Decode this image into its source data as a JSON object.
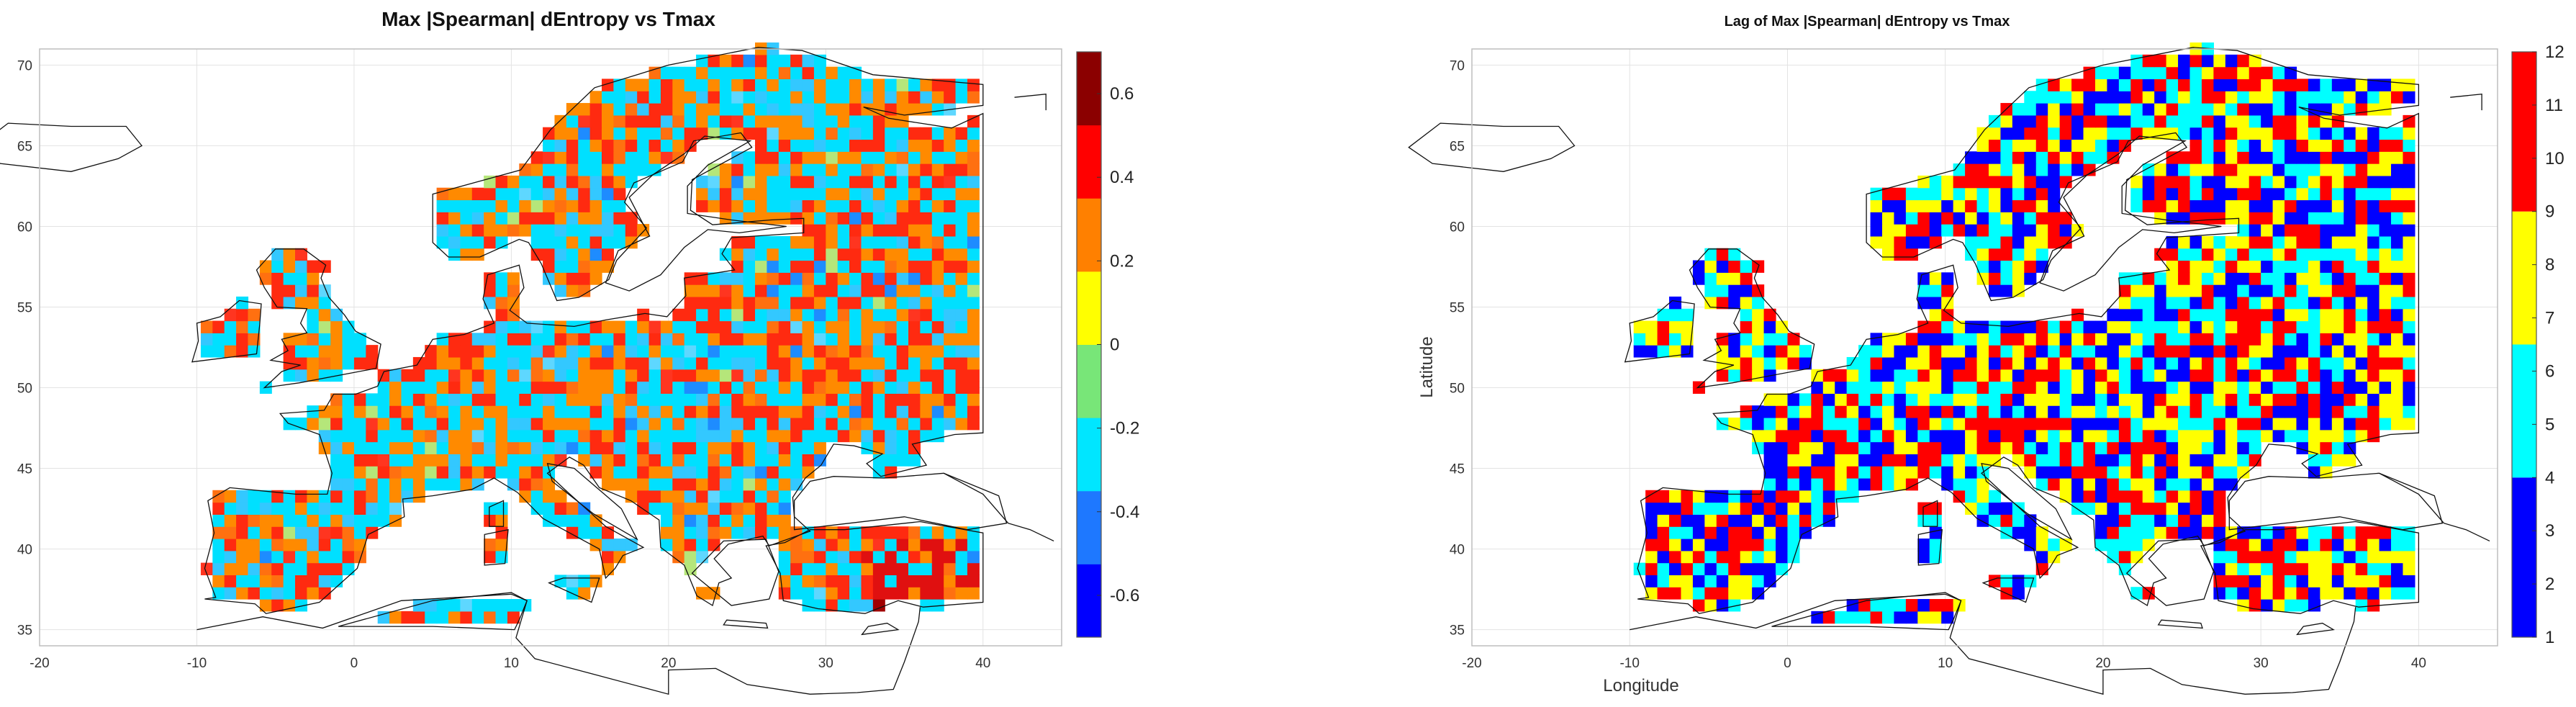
{
  "chart_data": [
    {
      "type": "heatmap",
      "title": "Max |Spearman| dEntropy vs Tmax",
      "xlabel": "",
      "ylabel": "",
      "xlim": [
        -20,
        45
      ],
      "ylim": [
        34,
        71
      ],
      "x_ticks": [
        "-20",
        "-10",
        "0",
        "10",
        "20",
        "30",
        "40"
      ],
      "y_ticks": [
        "35",
        "40",
        "45",
        "50",
        "55",
        "60",
        "65",
        "70"
      ],
      "grid": true,
      "colorbar": {
        "position": "right",
        "range": [
          -0.7,
          0.7
        ],
        "tick_labels": [
          "0.6",
          "0.4",
          "0.2",
          "0",
          "-0.2",
          "-0.4",
          "-0.6"
        ],
        "tick_values": [
          0.6,
          0.4,
          0.2,
          0,
          -0.2,
          -0.4,
          -0.6
        ],
        "colors": [
          "#0000ff",
          "#1e78ff",
          "#00e6ff",
          "#78e678",
          "#ffff00",
          "#ff8000",
          "#ff0000",
          "#8b0000"
        ]
      },
      "dominant_values": [
        "-0.3",
        "0.3",
        "0.45",
        "-0.25"
      ]
    },
    {
      "type": "heatmap",
      "title": "Lag of Max |Spearman| dEntropy vs Tmax",
      "xlabel": "Longitude",
      "ylabel": "Latitude",
      "xlim": [
        -20,
        45
      ],
      "ylim": [
        34,
        71
      ],
      "x_ticks": [
        "-20",
        "-10",
        "0",
        "10",
        "20",
        "30",
        "40"
      ],
      "y_ticks": [
        "35",
        "40",
        "45",
        "50",
        "55",
        "60",
        "65",
        "70"
      ],
      "grid": true,
      "colorbar": {
        "position": "right",
        "range": [
          1,
          12
        ],
        "tick_labels": [
          "12",
          "11",
          "10",
          "9",
          "8",
          "7",
          "6",
          "5",
          "4",
          "3",
          "2",
          "1"
        ],
        "tick_values": [
          12,
          11,
          10,
          9,
          8,
          7,
          6,
          5,
          4,
          3,
          2,
          1
        ],
        "bands": [
          {
            "from": 1,
            "to": 4,
            "color": "#0000ff"
          },
          {
            "from": 4,
            "to": 6.5,
            "color": "#00ffff"
          },
          {
            "from": 6.5,
            "to": 9,
            "color": "#ffff00"
          },
          {
            "from": 9,
            "to": 12,
            "color": "#ff0000"
          }
        ]
      },
      "dominant_values": [
        "1-3",
        "4-6",
        "7-9",
        "10-12"
      ]
    }
  ]
}
